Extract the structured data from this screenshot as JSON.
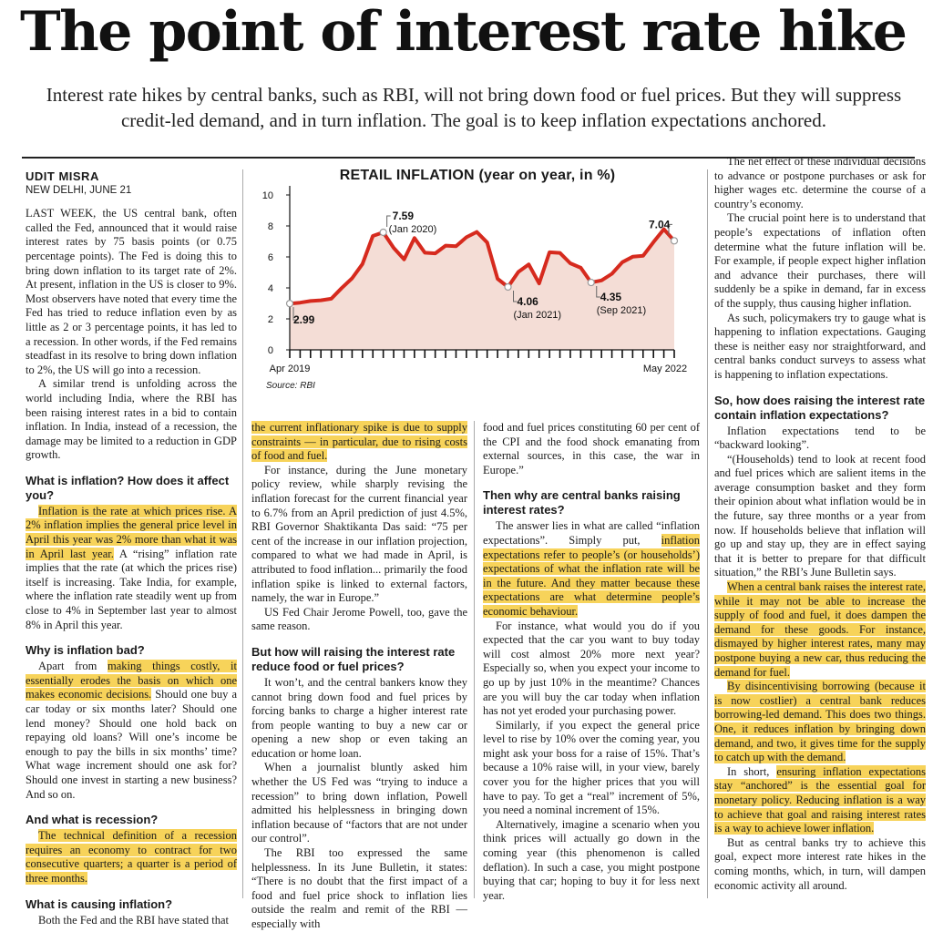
{
  "headline": "The point of interest rate hike",
  "deck": "Interest rate hikes by central banks, such as RBI, will not bring down food or fuel prices. But they will suppress credit-led demand, and in turn inflation. The goal is to keep inflation expectations anchored.",
  "byline": {
    "name": "UDIT MISRA",
    "place": "NEW DELHI, JUNE 21"
  },
  "col1": {
    "p1": "LAST WEEK, the US central bank, often called the Fed, announced that it would raise interest rates by 75 basis points (or 0.75 percentage points). The Fed is doing this to bring down inflation to its target rate of 2%. At present, inflation in the US is closer to 9%. Most observers have noted that every time the Fed has tried to reduce inflation even by as little as 2 or 3 percentage points, it has led to a recession. In other words, if the Fed remains steadfast in its resolve to bring down inflation to 2%, the US will go into a recession.",
    "p2": "A similar trend is unfolding across the world including India, where the RBI has been raising interest rates in a bid to contain inflation. In India, instead of a recession, the damage may be limited to a reduction in GDP growth.",
    "h1": "What is inflation? How does it affect you?",
    "p3_hl": "Inflation is the rate at which prices rise. A 2% inflation implies the general price level in April this year was 2% more than what it was in April last year.",
    "p3": " A “rising” inflation rate implies that the rate (at which the prices rise) itself is increasing. Take India, for example, where the inflation rate steadily went up from close to 4% in September last year to almost 8% in April this year.",
    "h2": "Why is inflation bad?",
    "p4_a": "Apart from ",
    "p4_hl": "making things costly, it essentially erodes the basis on which one makes economic decisions.",
    "p4_b": " Should one buy a car today or six months later? Should one lend money? Should one hold back on repaying old loans? Will one’s income be enough to pay the bills in six months’ time? What wage increment should one ask for? Should one invest in starting a new business? And so on.",
    "h3": "And what is recession?",
    "p5_hl": "The technical definition of a recession requires an economy to contract for two consecutive quarters; a quarter is a period of three months.",
    "h4": "What is causing inflation?",
    "p6": "Both the Fed and the RBI have stated that"
  },
  "col2": {
    "p1_hl": "the current inflationary spike is due to supply constraints — in particular, due to rising costs of food and fuel.",
    "p2": "For instance, during the June monetary policy review, while sharply revising the inflation forecast for the current financial year to 6.7% from an April prediction of just 4.5%, RBI Governor Shaktikanta Das said: “75 per cent of the increase in our inflation projection, compared to what we had made in April, is attributed to food inflation... primarily the food inflation spike is linked to external factors, namely, the war in Europe.”",
    "p3": "US Fed Chair Jerome Powell, too, gave the same reason.",
    "h1": "But how will raising the interest rate reduce food or fuel prices?",
    "p4": "It won’t, and the central bankers know they cannot bring down food and fuel prices by forcing banks to charge a higher interest rate from people wanting to buy a new car or opening a new shop or even taking an education or home loan.",
    "p5": "When a journalist bluntly asked him whether the US Fed was “trying to induce a recession” to bring down inflation, Powell admitted his helplessness in bringing down inflation because of “factors that are not under our control”.",
    "p6": "The RBI too expressed the same helplessness. In its June Bulletin, it states: “There is no doubt that the first impact of a food and fuel price shock to inflation lies outside the realm and remit of the RBI —especially with"
  },
  "col3": {
    "p1": "food and fuel prices constituting 60 per cent of the CPI and the food shock emanating from external sources, in this case, the war in Europe.”",
    "h1": "Then why are central banks raising interest rates?",
    "p2_a": "The answer lies in what are called “inflation expectations”. Simply put, ",
    "p2_hl": "inflation expectations refer to people’s (or households’) expectations of what the inflation rate will be in the future. And they matter because these expectations are what determine people’s economic behaviour.",
    "p3": "For instance, what would you do if you expected that the car you want to buy today will cost almost 20% more next year? Especially so, when you expect your income to go up by just 10% in the meantime? Chances are you will buy the car today when inflation has not yet eroded your purchasing power.",
    "p4": "Similarly, if you expect the general price level to rise by 10% over the coming year, you might ask your boss for a raise of 15%. That’s because a 10% raise will, in your view, barely cover you for the higher prices that you will have to pay. To get a “real” increment of 5%, you need a nominal increment of 15%.",
    "p5": "Alternatively, imagine a scenario when you think prices will actually go down in the coming year (this phenomenon is called deflation). In such a case, you might postpone buying that car; hoping to buy it for less next year."
  },
  "col4": {
    "p1": "The net effect of these individual decisions to advance or postpone purchases or ask for higher wages etc. determine the course of a country’s economy.",
    "p2": "The crucial point here is to understand that people’s expectations of inflation often determine what the future inflation will be. For example, if people expect higher inflation and advance their purchases, there will suddenly be a spike in demand, far in excess of the supply, thus causing higher inflation.",
    "p3": "As such, policymakers try to gauge what is happening to inflation expectations. Gauging these is neither easy nor straightforward, and central banks conduct surveys to assess what is happening to inflation expectations.",
    "h1": "So, how does raising the interest rate contain inflation expectations?",
    "p4": "Inflation expectations tend to be “backward looking”.",
    "p5": "“(Households) tend to look at recent food and fuel prices which are salient items in the average consumption basket and they form their opinion about what inflation would be in the future, say three months or a year from now. If households believe that inflation will go up and stay up, they are in effect saying that it is better to prepare for that difficult situation,” the RBI’s June Bulletin says.",
    "p6_hl": "When a central bank raises the interest rate, while it may not be able to increase the supply of food and fuel, it does dampen the demand for these goods. For instance, dismayed by higher interest rates, many may postpone buying a new car, thus reducing the demand for fuel.",
    "p7_hl": "By disincentivising borrowing (because it is now costlier) a central bank reduces borrowing-led demand. This does two things. One, it reduces inflation by bringing down demand, and two, it gives time for the supply to catch up with the demand.",
    "p8_a": "In short, ",
    "p8_hl": "ensuring inflation expectations stay “anchored” is the essential goal for monetary policy. Reducing inflation is a way to achieve that goal and raising interest rates is a way to achieve lower inflation.",
    "p9": "But as central banks try to achieve this goal, expect more interest rate hikes in the coming months, which, in turn, will dampen economic activity all around."
  },
  "chart_data": {
    "type": "line",
    "title": "RETAIL INFLATION (year on year, in %)",
    "source": "Source: RBI",
    "x_start_label": "Apr 2019",
    "x_end_label": "May 2022",
    "ylim": [
      0,
      10
    ],
    "yticks": [
      "0",
      "2",
      "4",
      "6",
      "8",
      "10"
    ],
    "color": "#d62a1e",
    "values": [
      2.99,
      3.05,
      3.15,
      3.2,
      3.3,
      3.99,
      4.62,
      5.54,
      7.35,
      7.59,
      6.58,
      5.84,
      7.22,
      6.27,
      6.23,
      6.73,
      6.69,
      7.27,
      7.61,
      6.93,
      4.59,
      4.06,
      5.03,
      5.52,
      4.29,
      6.3,
      6.26,
      5.59,
      5.3,
      4.35,
      4.48,
      4.91,
      5.66,
      6.01,
      6.07,
      6.95,
      7.79,
      7.04
    ],
    "annotations": [
      {
        "index": 0,
        "value": "2.99",
        "label": ""
      },
      {
        "index": 9,
        "value": "7.59",
        "label": "(Jan 2020)"
      },
      {
        "index": 21,
        "value": "4.06",
        "label": "(Jan 2021)"
      },
      {
        "index": 29,
        "value": "4.35",
        "label": "(Sep 2021)"
      },
      {
        "index": 37,
        "value": "7.04",
        "label": ""
      }
    ]
  }
}
